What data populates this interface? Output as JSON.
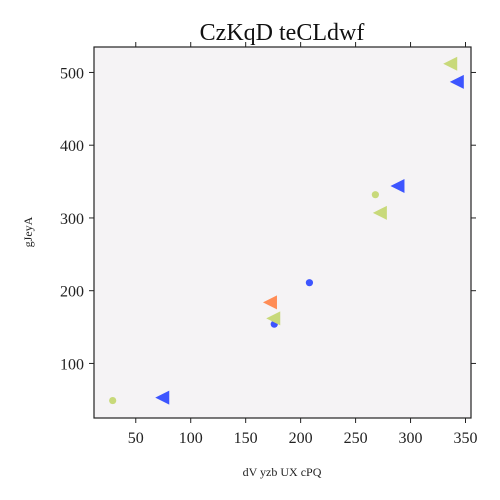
{
  "chart_data": {
    "type": "scatter",
    "title": "CzKqD teCLdwf",
    "xlabel": "dV yzb UX cPQ",
    "ylabel": "gJeyA",
    "xlim": [
      12,
      355
    ],
    "ylim": [
      25,
      535
    ],
    "xticks": [
      50,
      100,
      150,
      200,
      250,
      300,
      350
    ],
    "yticks": [
      100,
      200,
      300,
      400,
      500
    ],
    "grid": false,
    "background": "#f5f3f5",
    "series": [
      {
        "marker": "circle",
        "color": "#c8d97a",
        "points": [
          {
            "x": 29,
            "y": 49
          },
          {
            "x": 268,
            "y": 332
          }
        ]
      },
      {
        "marker": "circle",
        "color": "#3d55ff",
        "points": [
          {
            "x": 176,
            "y": 154
          },
          {
            "x": 208,
            "y": 211
          }
        ]
      },
      {
        "marker": "triangle-left",
        "color": "#3d55ff",
        "points": [
          {
            "x": 75,
            "y": 53
          },
          {
            "x": 289,
            "y": 344
          },
          {
            "x": 343,
            "y": 487
          }
        ]
      },
      {
        "marker": "triangle-left",
        "color": "#c8d97a",
        "points": [
          {
            "x": 176,
            "y": 162
          },
          {
            "x": 273,
            "y": 307
          },
          {
            "x": 337,
            "y": 512
          }
        ]
      },
      {
        "marker": "triangle-left",
        "color": "#ff8c55",
        "points": [
          {
            "x": 173,
            "y": 184
          }
        ]
      }
    ]
  }
}
